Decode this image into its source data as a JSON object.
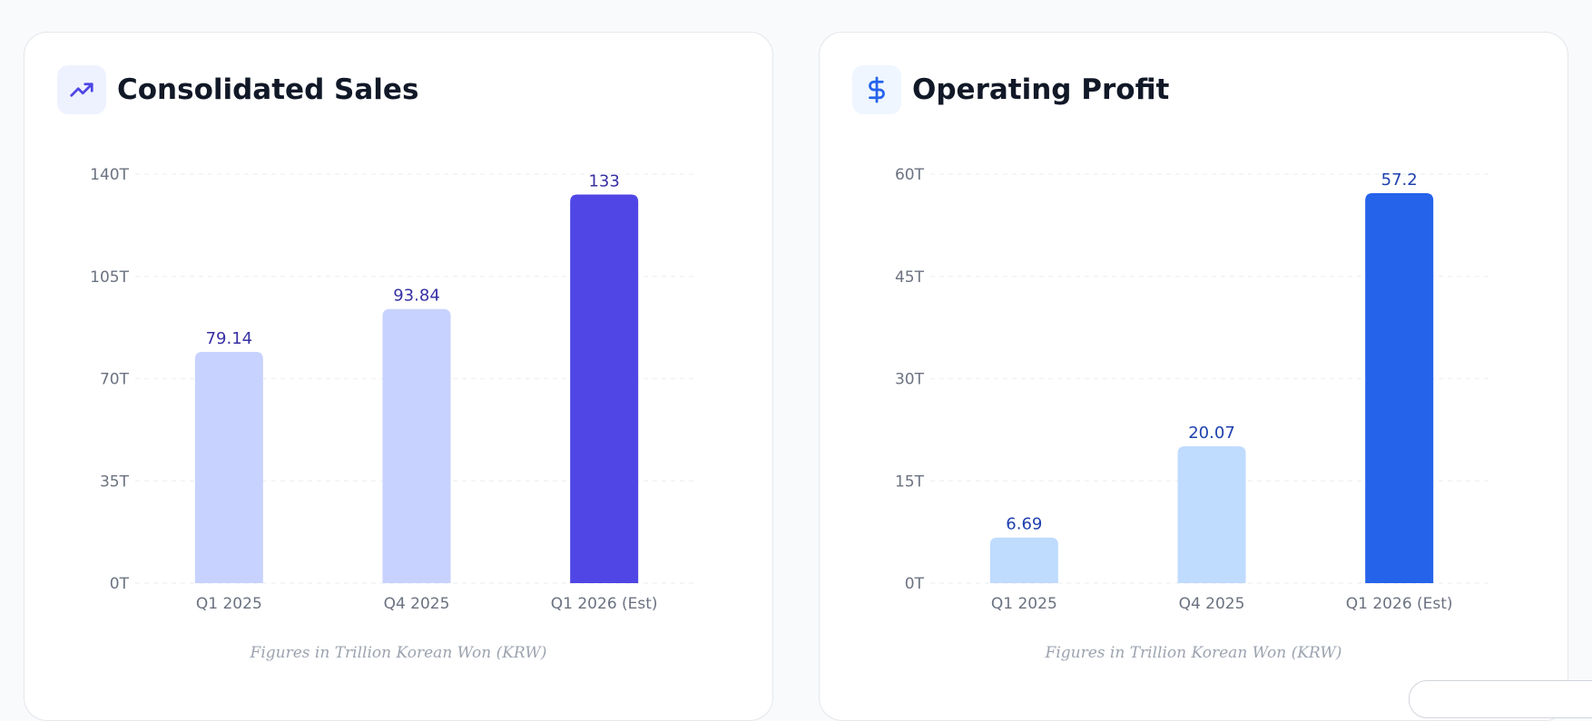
{
  "chart_data": [
    {
      "type": "bar",
      "title": "Consolidated Sales",
      "icon": "trending-up-icon",
      "categories": [
        "Q1 2025",
        "Q4 2025",
        "Q1 2026 (Est)"
      ],
      "values": [
        79.14,
        93.84,
        133
      ],
      "value_labels": [
        "79.14",
        "93.84",
        "133"
      ],
      "yticks": [
        0,
        35,
        70,
        105,
        140
      ],
      "ytick_labels": [
        "0T",
        "35T",
        "70T",
        "105T",
        "140T"
      ],
      "ylim": [
        0,
        140
      ],
      "colors": [
        "#c7d2fe",
        "#c7d2fe",
        "#4f46e5"
      ],
      "label_color": "#3730a3",
      "icon_bg": "#eef2ff",
      "icon_color": "#4f46e5",
      "footnote": "Figures in Trillion Korean Won (KRW)"
    },
    {
      "type": "bar",
      "title": "Operating Profit",
      "icon": "dollar-sign-icon",
      "categories": [
        "Q1 2025",
        "Q4 2025",
        "Q1 2026 (Est)"
      ],
      "values": [
        6.69,
        20.07,
        57.2
      ],
      "value_labels": [
        "6.69",
        "20.07",
        "57.2"
      ],
      "yticks": [
        0,
        15,
        30,
        45,
        60
      ],
      "ytick_labels": [
        "0T",
        "15T",
        "30T",
        "45T",
        "60T"
      ],
      "ylim": [
        0,
        60
      ],
      "colors": [
        "#bfdbfe",
        "#bfdbfe",
        "#2563eb"
      ],
      "label_color": "#1e40af",
      "icon_bg": "#eff6ff",
      "icon_color": "#2563eb",
      "footnote": "Figures in Trillion Korean Won (KRW)"
    }
  ]
}
